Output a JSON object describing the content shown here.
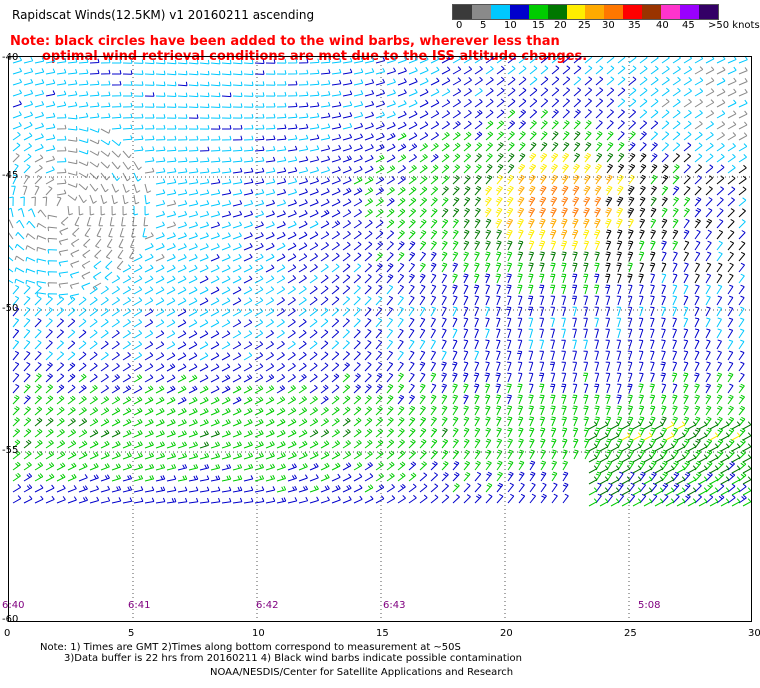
{
  "header": {
    "title": "Rapidscat Winds(12.5KM) v1 20160211 ascending",
    "note_line1": "Note: black circles have been added to the wind barbs, wherever less than",
    "note_line2": "optimal wind retrieval conditions are met due to the ISS altitude changes."
  },
  "legend": {
    "colors": [
      "#3a3a3a",
      "#8a8a8a",
      "#00c8ff",
      "#0000cc",
      "#00cc00",
      "#007700",
      "#ffee00",
      "#ffaa00",
      "#ff7700",
      "#ff0000",
      "#993300",
      "#ff33cc",
      "#9900ff",
      "#330066"
    ],
    "labels": [
      "0",
      "5",
      "10",
      "15",
      "20",
      "25",
      "30",
      "35",
      "40",
      "45",
      ">50 knots"
    ]
  },
  "map": {
    "y_ticks": [
      "-40",
      "-45",
      "-50",
      "-55",
      "-60"
    ],
    "x_ticks": [
      "0",
      "5",
      "10",
      "15",
      "20",
      "25",
      "30"
    ],
    "lat_range": [
      -60,
      -40
    ],
    "lon_range": [
      0,
      30
    ],
    "grid": true,
    "time_labels": [
      "6:40",
      "6:41",
      "6:42",
      "6:43",
      "5:08"
    ]
  },
  "footer": {
    "line1": "Note: 1) Times are GMT 2)Times along bottom correspond to measurement at ~50S",
    "line2": "3)Data buffer is 22 hrs from 20160211 4) Black wind barbs indicate possible contamination",
    "line3": "NOAA/NESDIS/Center for Satellite Applications and Research"
  }
}
